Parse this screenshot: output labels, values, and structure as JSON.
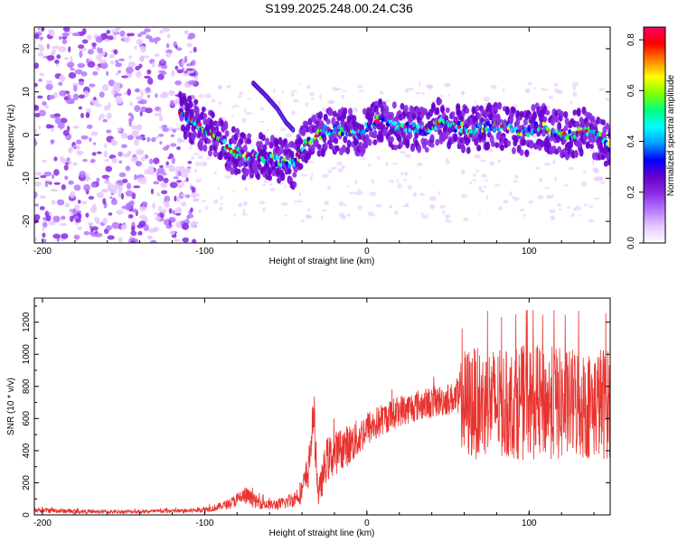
{
  "title": "S199.2025.248.00.24.C36",
  "chart_data": [
    {
      "type": "heatmap",
      "title": "",
      "xlabel": "Height of straight line (km)",
      "ylabel": "Frequency (Hz)",
      "xlim": [
        -205,
        150
      ],
      "ylim": [
        -25,
        25
      ],
      "xticks": [
        -200,
        -100,
        0,
        100
      ],
      "yticks": [
        -20,
        -10,
        0,
        10,
        20
      ],
      "colorbar": {
        "label": "Normalized spectral amplitude",
        "range": [
          0.0,
          0.85
        ],
        "ticks": [
          "0.0",
          "0.2",
          "0.4",
          "0.6",
          "0.8"
        ],
        "colors": [
          "#ffffff",
          "#e6c8ff",
          "#b478ff",
          "#8a2be2",
          "#6600cc",
          "#0000ff",
          "#00a0ff",
          "#00ffff",
          "#00ff80",
          "#80ff00",
          "#ffff00",
          "#ff8000",
          "#ff0000",
          "#ff0060"
        ]
      },
      "ridge": [
        {
          "x": -115,
          "y": 5
        },
        {
          "x": -105,
          "y": 3
        },
        {
          "x": -95,
          "y": 0
        },
        {
          "x": -85,
          "y": -3
        },
        {
          "x": -75,
          "y": -5
        },
        {
          "x": -65,
          "y": -5
        },
        {
          "x": -55,
          "y": -6
        },
        {
          "x": -45,
          "y": -7
        },
        {
          "x": -40,
          "y": -3
        },
        {
          "x": -35,
          "y": -1
        },
        {
          "x": -25,
          "y": 1
        },
        {
          "x": -15,
          "y": 1
        },
        {
          "x": -5,
          "y": 0
        },
        {
          "x": 0,
          "y": 2
        },
        {
          "x": 5,
          "y": 3
        },
        {
          "x": 10,
          "y": 4
        },
        {
          "x": 15,
          "y": 2
        },
        {
          "x": 25,
          "y": 2
        },
        {
          "x": 35,
          "y": 1
        },
        {
          "x": 45,
          "y": 3
        },
        {
          "x": 55,
          "y": 2
        },
        {
          "x": 65,
          "y": 1
        },
        {
          "x": 75,
          "y": 2
        },
        {
          "x": 85,
          "y": 2
        },
        {
          "x": 95,
          "y": 0
        },
        {
          "x": 105,
          "y": 2
        },
        {
          "x": 115,
          "y": 1
        },
        {
          "x": 125,
          "y": 0
        },
        {
          "x": 135,
          "y": 1
        },
        {
          "x": 145,
          "y": -1
        },
        {
          "x": 150,
          "y": -3
        }
      ],
      "secondary_arc": [
        {
          "x": -70,
          "y": 12
        },
        {
          "x": -62,
          "y": 9
        },
        {
          "x": -55,
          "y": 6
        },
        {
          "x": -50,
          "y": 3
        },
        {
          "x": -45,
          "y": 1
        }
      ],
      "noise_region_x": [
        -205,
        -115
      ]
    },
    {
      "type": "line",
      "title": "",
      "xlabel": "Height of straight line (km)",
      "ylabel": "SNR (10 * v/v)",
      "xlim": [
        -205,
        150
      ],
      "ylim": [
        0,
        1350
      ],
      "xticks": [
        -200,
        -100,
        0,
        100
      ],
      "yticks": [
        0,
        200,
        400,
        600,
        800,
        1000,
        1200
      ],
      "series": [
        {
          "name": "SNR",
          "color": "#e8332e",
          "x": [
            -205,
            -190,
            -170,
            -150,
            -130,
            -110,
            -95,
            -85,
            -75,
            -68,
            -60,
            -52,
            -45,
            -40,
            -36,
            -33,
            -31,
            -30,
            -28,
            -25,
            -20,
            -15,
            -10,
            -5,
            0,
            5,
            10,
            15,
            20,
            25,
            30,
            35,
            40,
            45,
            50,
            55,
            60,
            65,
            70,
            75,
            80,
            85,
            90,
            95,
            100,
            105,
            110,
            115,
            120,
            125,
            130,
            135,
            140,
            145,
            150
          ],
          "y": [
            30,
            25,
            20,
            20,
            22,
            25,
            40,
            70,
            120,
            80,
            60,
            70,
            100,
            150,
            280,
            620,
            330,
            120,
            200,
            340,
            380,
            420,
            440,
            480,
            540,
            560,
            600,
            620,
            650,
            660,
            680,
            690,
            700,
            710,
            720,
            730,
            680,
            700,
            690,
            700,
            700,
            680,
            690,
            700,
            700,
            700,
            690,
            700,
            680,
            690,
            700,
            680,
            690,
            700,
            690
          ],
          "spread": [
            15,
            15,
            12,
            12,
            12,
            15,
            20,
            30,
            60,
            40,
            30,
            40,
            50,
            80,
            120,
            120,
            150,
            80,
            100,
            140,
            140,
            130,
            130,
            120,
            110,
            110,
            100,
            100,
            100,
            100,
            100,
            100,
            100,
            100,
            100,
            100,
            360,
            360,
            340,
            360,
            340,
            340,
            340,
            360,
            360,
            360,
            340,
            360,
            360,
            340,
            360,
            340,
            340,
            360,
            340
          ]
        }
      ]
    }
  ]
}
